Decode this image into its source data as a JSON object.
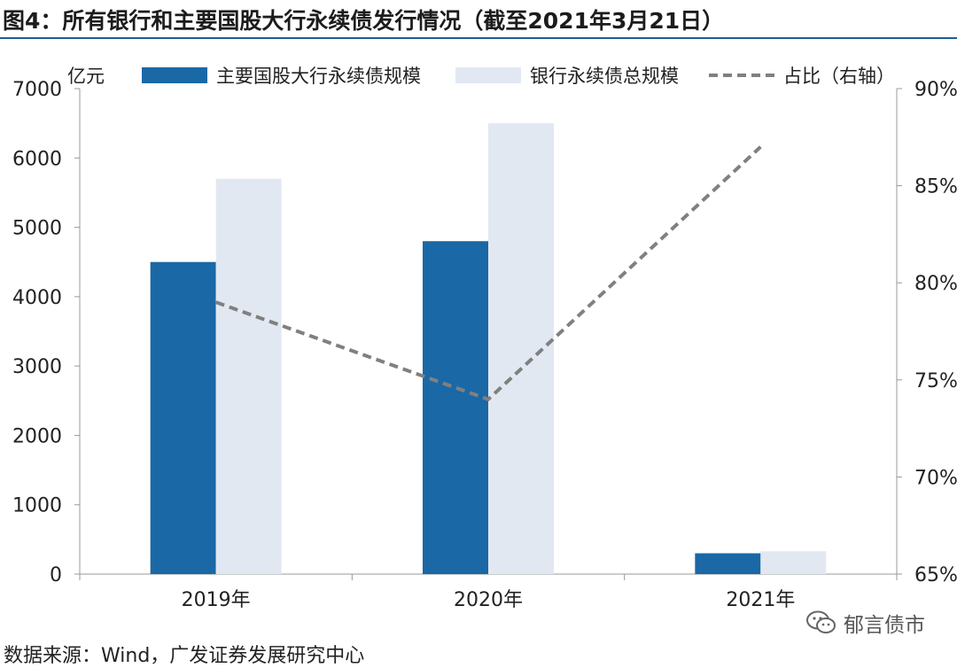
{
  "header": {
    "title": "图4：所有银行和主要国股大行永续债发行情况（截至2021年3月21日）"
  },
  "chart_data": {
    "type": "bar",
    "categories": [
      "2019年",
      "2020年",
      "2021年"
    ],
    "series": [
      {
        "name": "主要国股大行永续债规模",
        "type": "bar",
        "axis": "left",
        "color": "#1a68a6",
        "values": [
          4500,
          4800,
          300
        ]
      },
      {
        "name": "银行永续债总规模",
        "type": "bar",
        "axis": "left",
        "color": "#e2e8f2",
        "values": [
          5700,
          6500,
          330
        ]
      },
      {
        "name": "占比（右轴）",
        "type": "line",
        "axis": "right",
        "color": "#808080",
        "values": [
          79,
          74,
          87
        ]
      }
    ],
    "y_left": {
      "unit": "亿元",
      "ylim": [
        0,
        7000
      ],
      "ticks": [
        "0",
        "1000",
        "2000",
        "3000",
        "4000",
        "5000",
        "6000",
        "7000"
      ]
    },
    "y_right": {
      "ylim": [
        65,
        90
      ],
      "ticks": [
        "65%",
        "70%",
        "75%",
        "80%",
        "85%",
        "90%"
      ]
    },
    "legend_position": "top",
    "grid": false
  },
  "footer": {
    "source": "数据来源：Wind，广发证券发展研究中心",
    "watermark": "郁言债市",
    "watermark_icon": "wechat-icon"
  }
}
